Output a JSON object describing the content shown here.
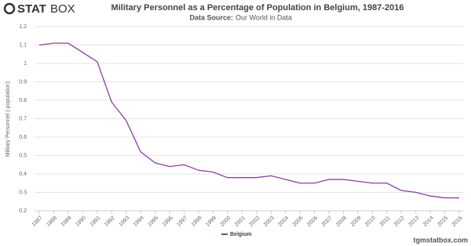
{
  "logo": {
    "bold": "STAT",
    "light": "BOX"
  },
  "watermark": "tgmstatbox.com",
  "chart_data": {
    "type": "line",
    "title": "Military Personnel as a Percentage of Population in Belgium, 1987-2016",
    "source_label": "Data Source:",
    "source": "Our World in Data",
    "y_label": "Military Personnel ( population)",
    "x": [
      1987,
      1988,
      1989,
      1990,
      1991,
      1992,
      1993,
      1994,
      1995,
      1996,
      1997,
      1998,
      1999,
      2000,
      2001,
      2002,
      2003,
      2004,
      2005,
      2006,
      2007,
      2008,
      2009,
      2010,
      2011,
      2012,
      2013,
      2014,
      2015,
      2016
    ],
    "series": [
      {
        "name": "Belgium",
        "color": "#8e3f9f",
        "values": [
          1.1,
          1.11,
          1.11,
          1.06,
          1.01,
          0.79,
          0.69,
          0.52,
          0.46,
          0.44,
          0.45,
          0.42,
          0.41,
          0.38,
          0.38,
          0.38,
          0.39,
          0.37,
          0.35,
          0.35,
          0.37,
          0.37,
          0.36,
          0.35,
          0.35,
          0.31,
          0.3,
          0.28,
          0.27,
          0.27
        ]
      }
    ],
    "xlim": [
      1987,
      2016
    ],
    "xticks": [
      1987,
      1988,
      1989,
      1990,
      1991,
      1992,
      1993,
      1994,
      1995,
      1996,
      1997,
      1998,
      1999,
      2000,
      2001,
      2002,
      2003,
      2004,
      2005,
      2006,
      2007,
      2008,
      2009,
      2010,
      2011,
      2012,
      2013,
      2014,
      2015,
      2016
    ],
    "ylim": [
      0.2,
      1.2
    ],
    "yticks": [
      0.2,
      0.3,
      0.4,
      0.5,
      0.6,
      0.7,
      0.8,
      0.9,
      1,
      1.1,
      1.2
    ],
    "grid": true,
    "legend": "bottom"
  }
}
